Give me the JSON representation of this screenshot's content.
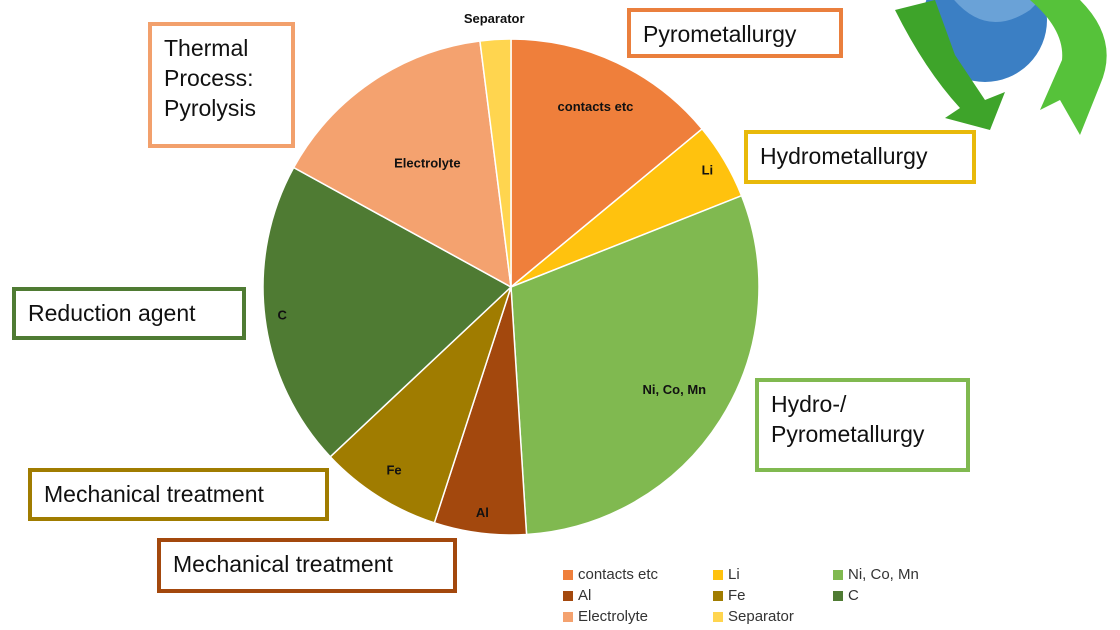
{
  "chart_data": {
    "type": "pie",
    "categories": [
      "contacts etc",
      "Li",
      "Ni, Co, Mn",
      "Al",
      "Fe",
      "C",
      "Electrolyte",
      "Separator"
    ],
    "values": [
      14,
      5,
      30,
      6,
      8,
      20,
      15,
      2
    ],
    "colors": [
      "#ef7f3b",
      "#ffc20e",
      "#80b950",
      "#a3480d",
      "#a07c00",
      "#4f7b33",
      "#f4a26f",
      "#ffd54f"
    ],
    "annotations": [
      {
        "text": "Thermal Process: Pyrolysis",
        "color": "#f2a06c"
      },
      {
        "text": "Pyrometallurgy",
        "color": "#ea7f3d"
      },
      {
        "text": "Hydrometallurgy",
        "color": "#e8b90a"
      },
      {
        "text": "Reduction agent",
        "color": "#4f7b33"
      },
      {
        "text": "Hydro-/ Pyrometallurgy",
        "color": "#80b950"
      },
      {
        "text": "Mechanical treatment",
        "color": "#a07c00"
      },
      {
        "text": "Mechanical treatment",
        "color": "#a3480d"
      }
    ]
  }
}
